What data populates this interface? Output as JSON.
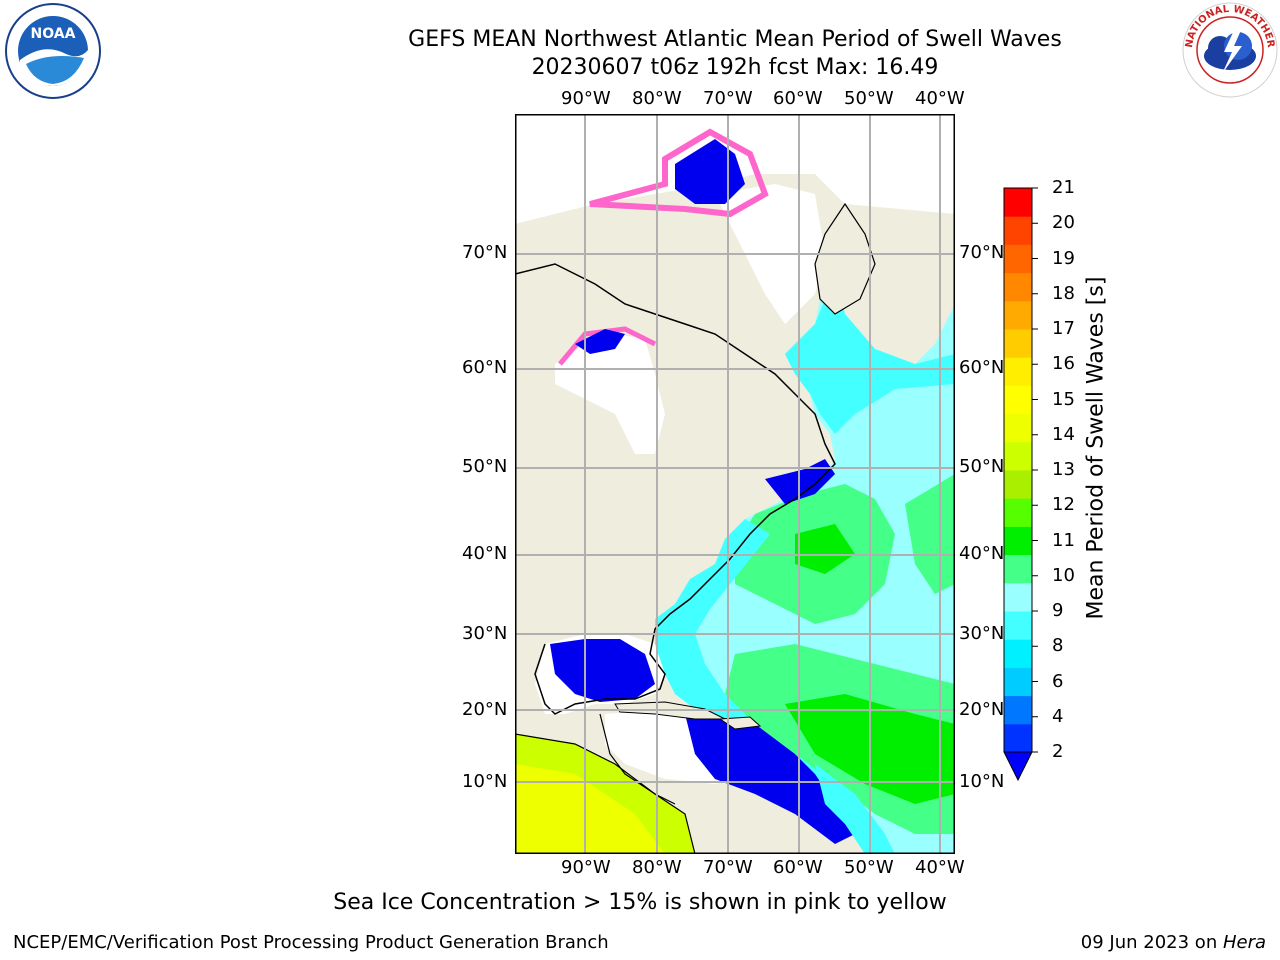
{
  "title_line1": "GEFS MEAN Northwest Atlantic Mean Period of Swell Waves",
  "title_line2": "20230607 t06z 192h fcst   Max: 16.49",
  "lon_labels": [
    "90°W",
    "80°W",
    "70°W",
    "60°W",
    "50°W",
    "40°W"
  ],
  "lat_labels": [
    "70°N",
    "60°N",
    "50°N",
    "40°N",
    "30°N",
    "20°N",
    "10°N"
  ],
  "colorbar": {
    "label": "Mean Period of Swell Waves [s]",
    "ticks": [
      "2",
      "4",
      "6",
      "8",
      "9",
      "10",
      "11",
      "12",
      "13",
      "14",
      "15",
      "16",
      "17",
      "18",
      "19",
      "20",
      "21"
    ],
    "colors": [
      "#0033ff",
      "#0077ff",
      "#00ccff",
      "#00f0ff",
      "#44ffff",
      "#99ffff",
      "#44ff88",
      "#00ee00",
      "#55ff00",
      "#aaee00",
      "#ccff00",
      "#eeff00",
      "#ffff00",
      "#ffee00",
      "#ffcc00",
      "#ffaa00",
      "#ff8800",
      "#ff6600",
      "#ff4400",
      "#ff0000"
    ],
    "under_color": "#0000ff"
  },
  "caption": "Sea Ice Concentration > 15% is shown in pink to yellow",
  "footer_left": "NCEP/EMC/Verification Post Processing Product Generation Branch",
  "footer_right_prefix": "09 Jun 2023 on ",
  "footer_right_italic": "Hera",
  "logo_left_text": "NOAA",
  "logo_right_text": "NATIONAL WEATHER SERVICE",
  "colors": {
    "land": "#efedde",
    "ocean_blank": "#ffffff",
    "grid": "#b0b0b0"
  }
}
